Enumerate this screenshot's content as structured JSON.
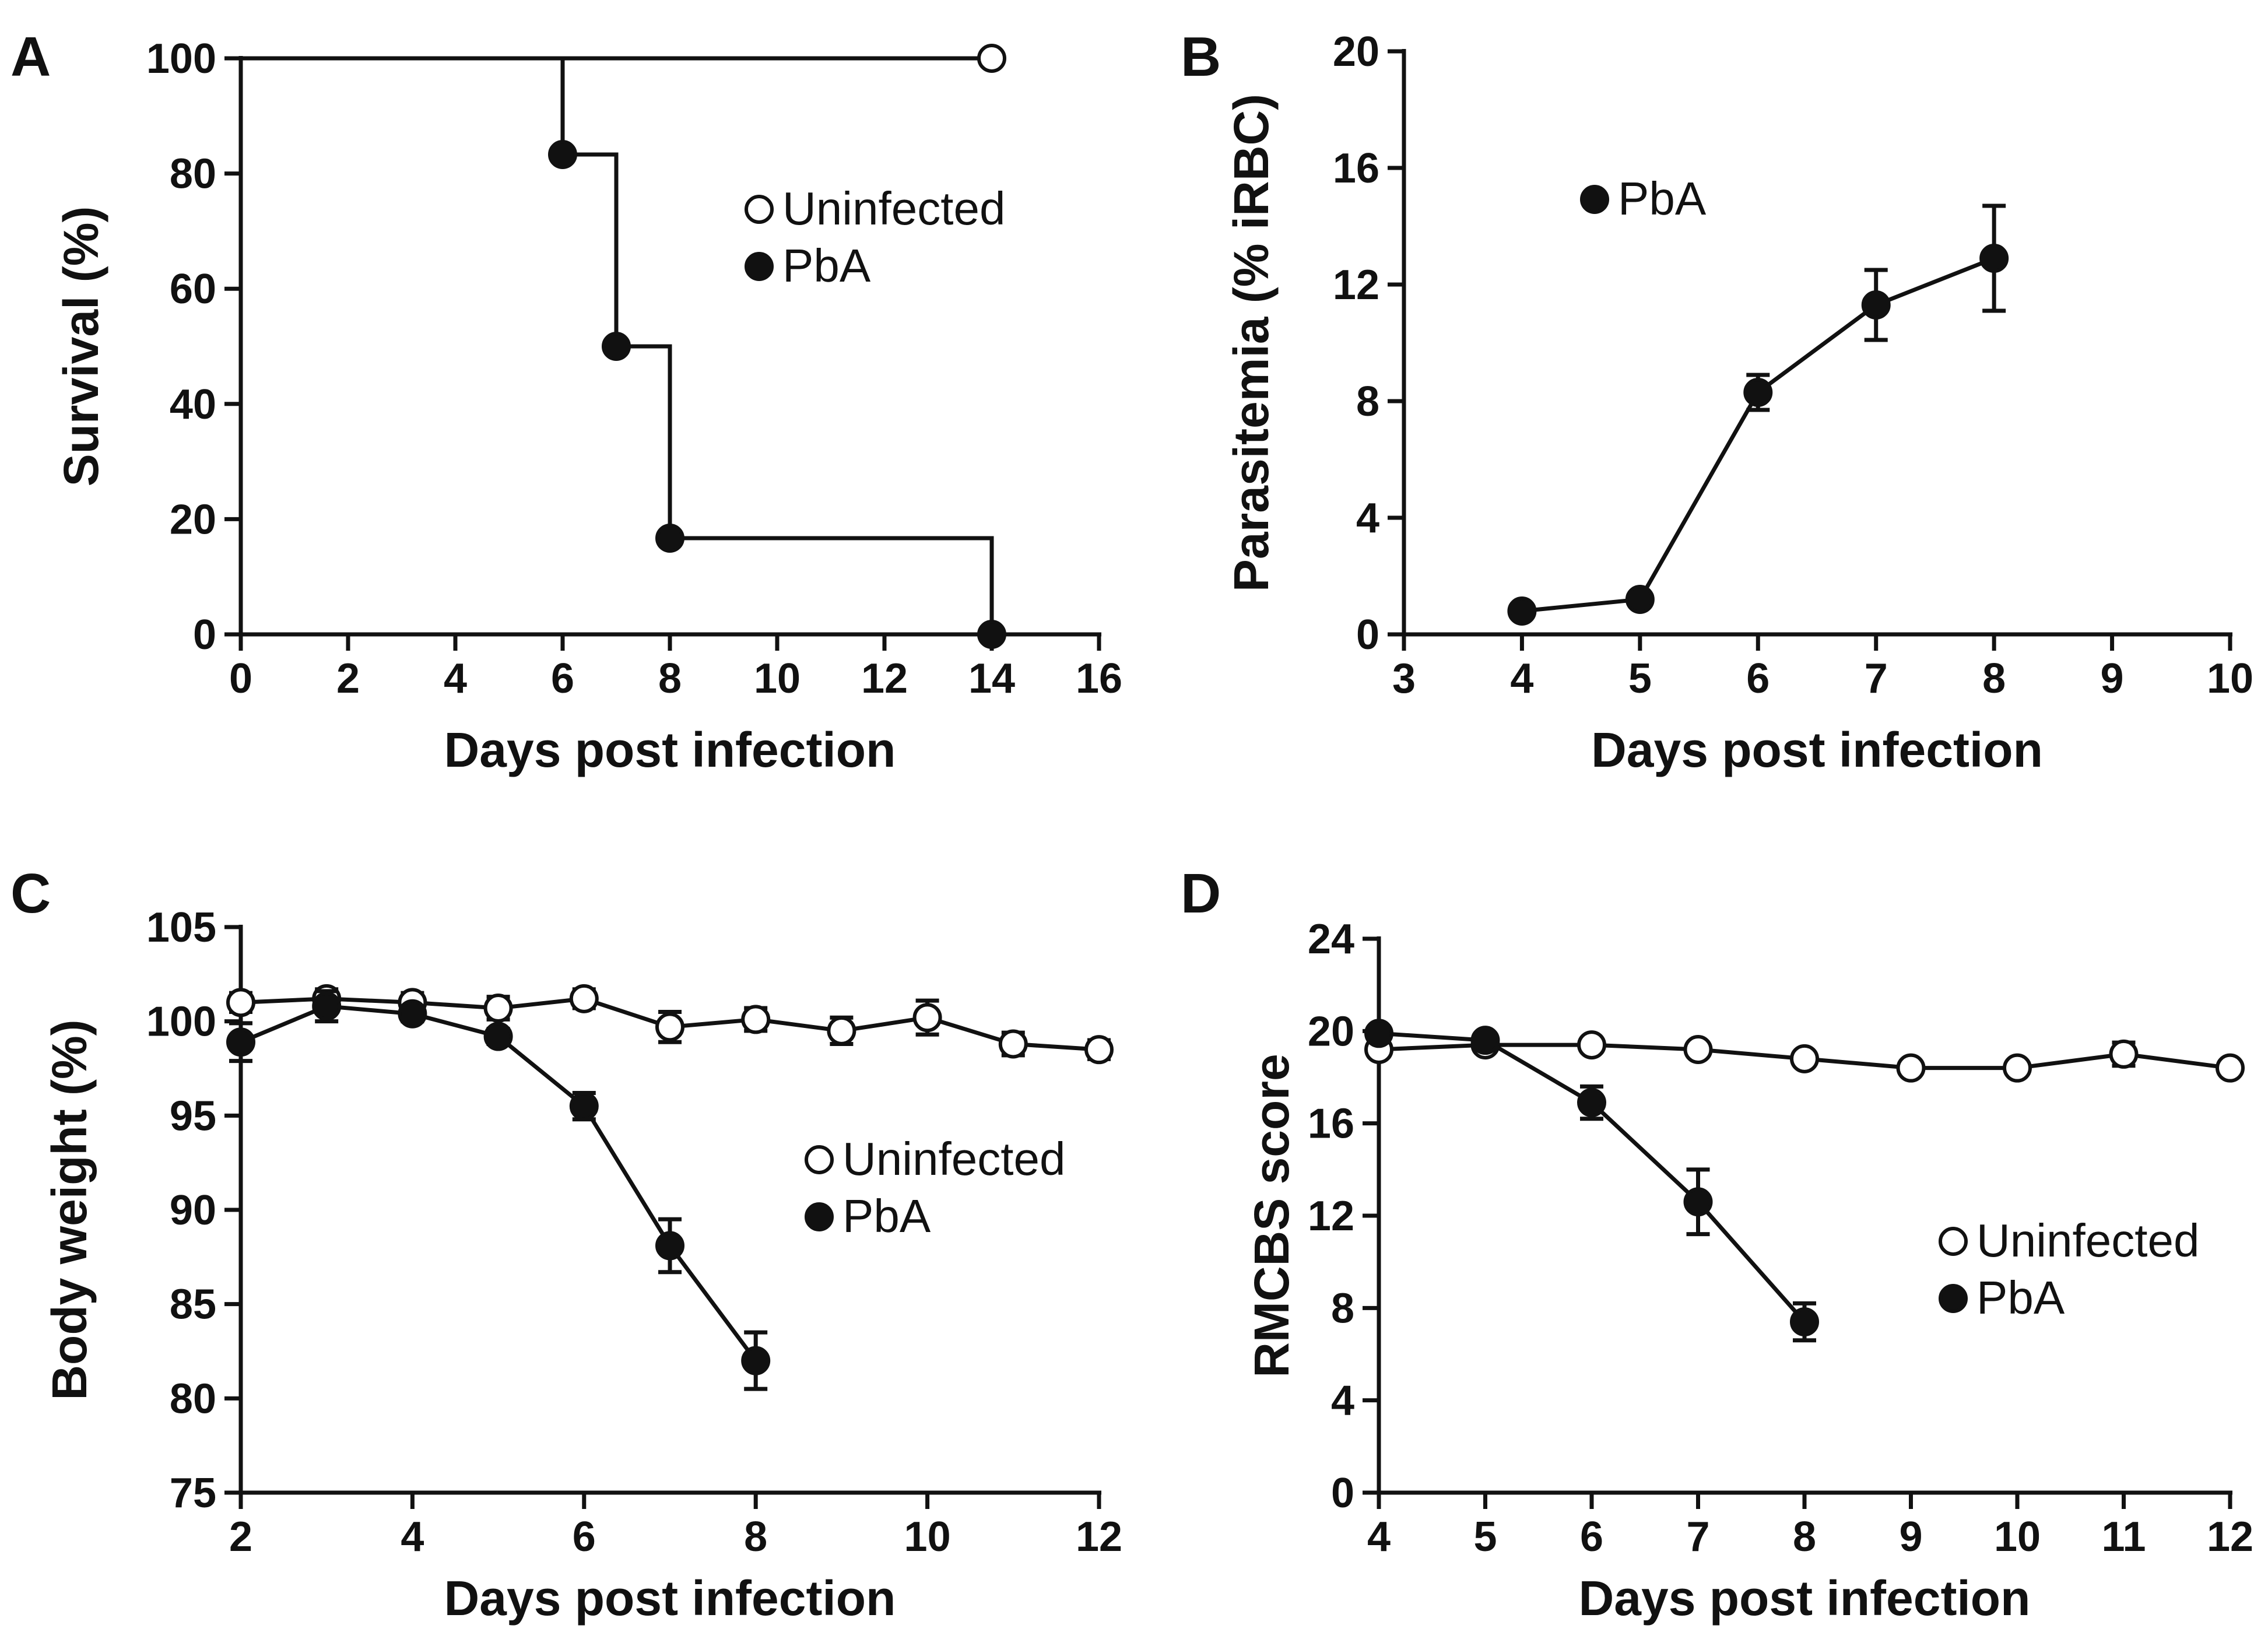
{
  "chart_data": [
    {
      "panel": "A",
      "type": "line",
      "step": true,
      "xlabel": "Days post infection",
      "ylabel": "Survival (%)",
      "xlim": [
        0,
        16
      ],
      "ylim": [
        0,
        100
      ],
      "xticks": [
        0,
        2,
        4,
        6,
        8,
        10,
        12,
        14,
        16
      ],
      "yticks": [
        0,
        20,
        40,
        60,
        80,
        100
      ],
      "series": [
        {
          "name": "Uninfected",
          "marker": "open",
          "x": [
            0,
            14
          ],
          "y": [
            100,
            100
          ],
          "marker_x": [
            14
          ],
          "marker_y": [
            100
          ]
        },
        {
          "name": "PbA",
          "marker": "filled",
          "x": [
            0,
            6,
            7,
            8,
            14
          ],
          "y": [
            100,
            83.3,
            50,
            16.7,
            0
          ],
          "marker_x": [
            6,
            7,
            8,
            14
          ],
          "marker_y": [
            83.3,
            50,
            16.7,
            0
          ]
        }
      ],
      "legend": [
        {
          "label": "Uninfected",
          "marker": "open"
        },
        {
          "label": "PbA",
          "marker": "filled"
        }
      ],
      "legend_placement": "center-right"
    },
    {
      "panel": "B",
      "type": "line",
      "xlabel": "Days post infection",
      "ylabel": "Parasitemia (% iRBC)",
      "xlim": [
        3,
        10
      ],
      "ylim": [
        0,
        20
      ],
      "xticks": [
        3,
        4,
        5,
        6,
        7,
        8,
        9,
        10
      ],
      "yticks": [
        0,
        4,
        8,
        12,
        16,
        20
      ],
      "series": [
        {
          "name": "PbA",
          "marker": "filled",
          "x": [
            4,
            5,
            6,
            7,
            8
          ],
          "y": [
            0.8,
            1.2,
            8.3,
            11.3,
            12.9
          ],
          "err": [
            0.1,
            0.2,
            0.6,
            1.2,
            1.8
          ]
        }
      ],
      "legend": [
        {
          "label": "PbA",
          "marker": "filled"
        }
      ],
      "legend_placement": "top-left"
    },
    {
      "panel": "C",
      "type": "line",
      "xlabel": "Days post infection",
      "ylabel": "Body weight (%)",
      "xlim": [
        2,
        12
      ],
      "ylim": [
        75,
        105
      ],
      "xticks": [
        2,
        4,
        6,
        8,
        10,
        12
      ],
      "yticks": [
        75,
        80,
        85,
        90,
        95,
        100,
        105
      ],
      "series": [
        {
          "name": "Uninfected",
          "marker": "open",
          "x": [
            2,
            3,
            4,
            5,
            6,
            7,
            8,
            9,
            10,
            11,
            12
          ],
          "y": [
            101.0,
            101.2,
            101.0,
            100.7,
            101.2,
            99.7,
            100.1,
            99.5,
            100.2,
            98.8,
            98.5
          ],
          "err": [
            0.5,
            0.5,
            0.5,
            0.6,
            0.5,
            0.8,
            0.6,
            0.7,
            0.9,
            0.6,
            0.5
          ]
        },
        {
          "name": "PbA",
          "marker": "filled",
          "x": [
            2,
            3,
            4,
            5,
            6,
            7,
            8
          ],
          "y": [
            98.9,
            100.8,
            100.4,
            99.2,
            95.5,
            88.1,
            82.0
          ],
          "err": [
            1.0,
            0.8,
            0.4,
            0.4,
            0.7,
            1.4,
            1.5
          ]
        }
      ],
      "legend": [
        {
          "label": "Uninfected",
          "marker": "open"
        },
        {
          "label": "PbA",
          "marker": "filled"
        }
      ],
      "legend_placement": "center-right"
    },
    {
      "panel": "D",
      "type": "line",
      "xlabel": "Days post infection",
      "ylabel": "RMCBS score",
      "xlim": [
        4,
        12
      ],
      "ylim": [
        0,
        24
      ],
      "xticks": [
        4,
        5,
        6,
        7,
        8,
        9,
        10,
        11,
        12
      ],
      "yticks": [
        0,
        4,
        8,
        12,
        16,
        20,
        24
      ],
      "series": [
        {
          "name": "Uninfected",
          "marker": "open",
          "x": [
            4,
            5,
            6,
            7,
            8,
            9,
            10,
            11,
            12
          ],
          "y": [
            19.2,
            19.4,
            19.4,
            19.2,
            18.8,
            18.4,
            18.4,
            19.0,
            18.4
          ],
          "err": [
            0.3,
            0.2,
            0.2,
            0.2,
            0.2,
            0.2,
            0.2,
            0.5,
            0.2
          ]
        },
        {
          "name": "PbA",
          "marker": "filled",
          "x": [
            4,
            5,
            6,
            7,
            8
          ],
          "y": [
            19.9,
            19.6,
            16.9,
            12.6,
            7.4
          ],
          "err": [
            0.2,
            0.2,
            0.7,
            1.4,
            0.8
          ]
        }
      ],
      "legend": [
        {
          "label": "Uninfected",
          "marker": "open"
        },
        {
          "label": "PbA",
          "marker": "filled"
        }
      ],
      "legend_placement": "bottom-right"
    }
  ]
}
